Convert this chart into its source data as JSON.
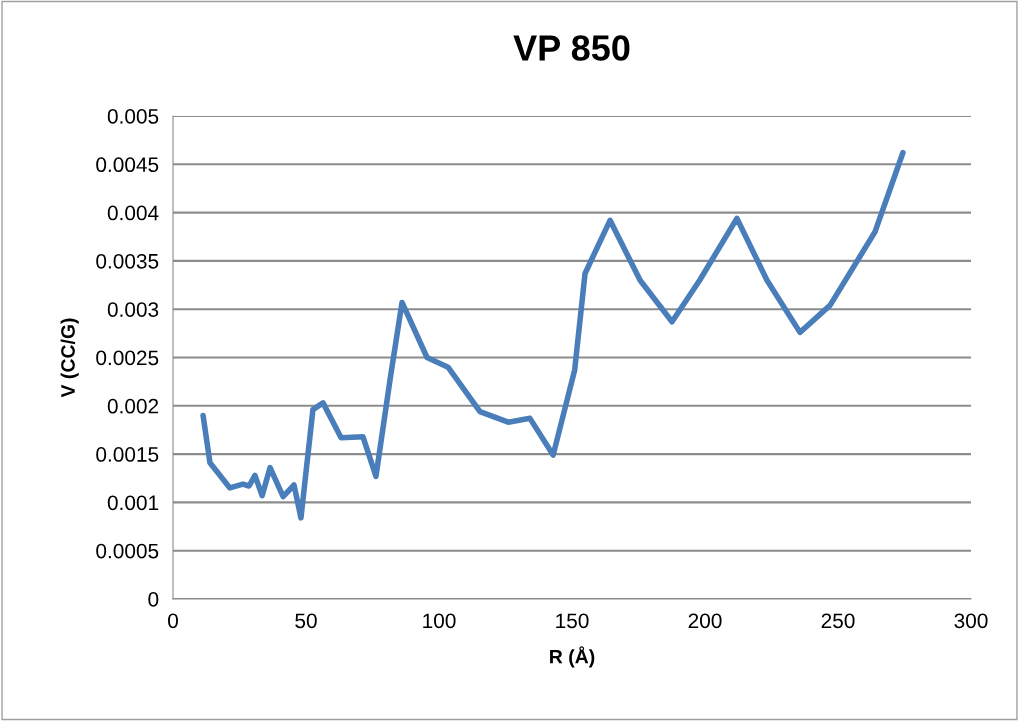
{
  "chart_data": {
    "type": "line",
    "title": "VP 850",
    "xlabel": "R (Å)",
    "ylabel": "V (CC/G)",
    "xlim": [
      0,
      300
    ],
    "xticks": [
      0,
      50,
      100,
      150,
      200,
      250,
      300
    ],
    "ylim": [
      0,
      0.005
    ],
    "yticks": [
      {
        "value": 0,
        "label": "0"
      },
      {
        "value": 0.0005,
        "label": "0.0005"
      },
      {
        "value": 0.001,
        "label": "0.001"
      },
      {
        "value": 0.0015,
        "label": "0.0015"
      },
      {
        "value": 0.002,
        "label": "0.002"
      },
      {
        "value": 0.0025,
        "label": "0.0025"
      },
      {
        "value": 0.003,
        "label": "0.003"
      },
      {
        "value": 0.0035,
        "label": "0.0035"
      },
      {
        "value": 0.004,
        "label": "0.004"
      },
      {
        "value": 0.0045,
        "label": "0.0045"
      },
      {
        "value": 0.005,
        "label": "0.005"
      }
    ],
    "grid": "y",
    "legend": false,
    "marker": "none",
    "line_style": "solid",
    "series": [
      {
        "color": "#4a7ebb",
        "x": [
          11.3,
          13.9,
          21.4,
          26.3,
          28.6,
          30.8,
          33.5,
          36.5,
          41.4,
          45.5,
          48.1,
          52.6,
          56.4,
          63.2,
          71.4,
          76.3,
          81.6,
          86.1,
          95.5,
          103.4,
          115.4,
          126,
          134.2,
          142.9,
          151,
          154.9,
          164.3,
          175.6,
          187.6,
          198,
          212,
          223.3,
          235.7,
          247,
          263.9,
          274.4
        ],
        "values": [
          0.0019,
          0.00141,
          0.00115,
          0.00119,
          0.00117,
          0.00128,
          0.00107,
          0.00136,
          0.00106,
          0.00118,
          0.00084,
          0.00196,
          0.00203,
          0.00167,
          0.00168,
          0.00127,
          0.00227,
          0.00307,
          0.0025,
          0.0024,
          0.00194,
          0.00183,
          0.00187,
          0.00149,
          0.00237,
          0.00337,
          0.00392,
          0.0033,
          0.00287,
          0.0033,
          0.00394,
          0.0033,
          0.00276,
          0.00304,
          0.0038,
          0.00462
        ]
      }
    ]
  }
}
